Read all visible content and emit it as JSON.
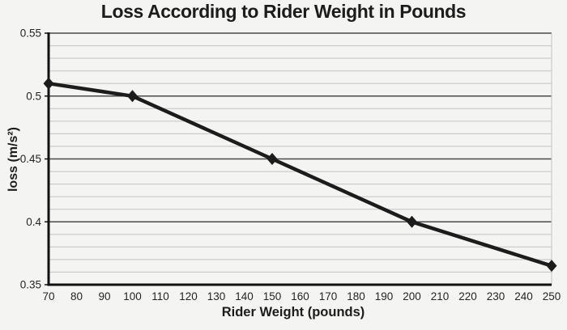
{
  "chart_data": {
    "type": "line",
    "title": "Loss According to Rider Weight in Pounds",
    "xlabel": "Rider Weight (pounds)",
    "ylabel": "loss (m/s²)",
    "series": [
      {
        "name": "loss",
        "x": [
          70,
          100,
          150,
          200,
          250
        ],
        "y": [
          0.51,
          0.5,
          0.45,
          0.4,
          0.365
        ]
      }
    ],
    "xlim": [
      70,
      250
    ],
    "ylim": [
      0.35,
      0.55
    ],
    "x_ticks": [
      70,
      80,
      90,
      100,
      110,
      120,
      130,
      140,
      150,
      160,
      170,
      180,
      190,
      200,
      210,
      220,
      230,
      240,
      250
    ],
    "y_ticks": [
      0.35,
      0.4,
      0.45,
      0.5,
      0.55
    ],
    "y_tick_labels": [
      "0.35",
      "0.4",
      "0.45",
      "0.5",
      "0.55"
    ],
    "y_minor_step": 0.01,
    "grid": "horizontal, major and minor",
    "legend": "none",
    "marker": "diamond",
    "colors": {
      "line": "#1c1c1c",
      "axis": "#111111",
      "major_grid": "#4b4b4b",
      "minor_grid": "#c8c8c8",
      "background": "#f4f5f2",
      "text": "#1c1c1c"
    }
  }
}
